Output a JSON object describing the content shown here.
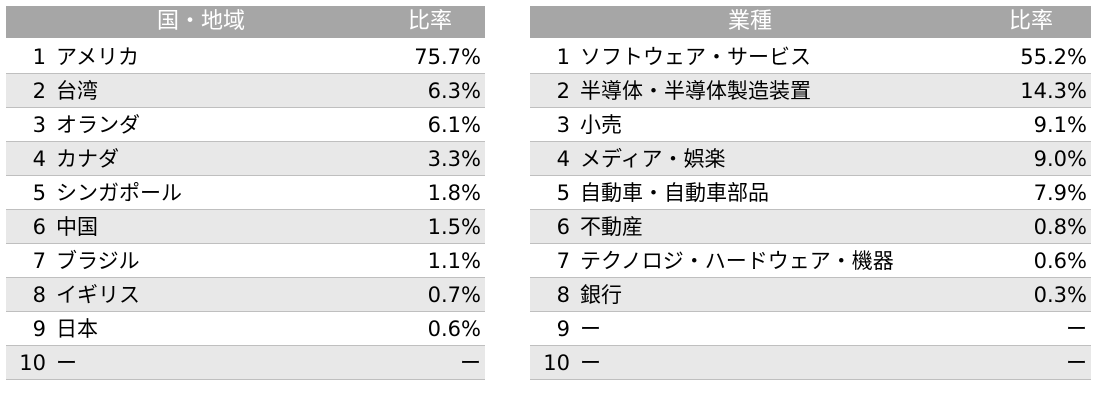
{
  "country_table": {
    "header_name": "国・地域",
    "header_rate": "比率",
    "rows": [
      {
        "num": "1",
        "name": "アメリカ",
        "rate": "75.7%"
      },
      {
        "num": "2",
        "name": "台湾",
        "rate": "6.3%"
      },
      {
        "num": "3",
        "name": "オランダ",
        "rate": "6.1%"
      },
      {
        "num": "4",
        "name": "カナダ",
        "rate": "3.3%"
      },
      {
        "num": "5",
        "name": "シンガポール",
        "rate": "1.8%"
      },
      {
        "num": "6",
        "name": "中国",
        "rate": "1.5%"
      },
      {
        "num": "7",
        "name": "ブラジル",
        "rate": "1.1%"
      },
      {
        "num": "8",
        "name": "イギリス",
        "rate": "0.7%"
      },
      {
        "num": "9",
        "name": "日本",
        "rate": "0.6%"
      },
      {
        "num": "10",
        "name": "ー",
        "rate": "ー"
      }
    ]
  },
  "industry_table": {
    "header_name": "業種",
    "header_rate": "比率",
    "rows": [
      {
        "num": "1",
        "name": "ソフトウェア・サービス",
        "rate": "55.2%"
      },
      {
        "num": "2",
        "name": "半導体・半導体製造装置",
        "rate": "14.3%"
      },
      {
        "num": "3",
        "name": "小売",
        "rate": "9.1%"
      },
      {
        "num": "4",
        "name": "メディア・娯楽",
        "rate": "9.0%"
      },
      {
        "num": "5",
        "name": "自動車・自動車部品",
        "rate": "7.9%"
      },
      {
        "num": "6",
        "name": "不動産",
        "rate": "0.8%"
      },
      {
        "num": "7",
        "name": "テクノロジ・ハードウェア・機器",
        "rate": "0.6%"
      },
      {
        "num": "8",
        "name": "銀行",
        "rate": "0.3%"
      },
      {
        "num": "9",
        "name": "ー",
        "rate": "ー"
      },
      {
        "num": "10",
        "name": "ー",
        "rate": "ー"
      }
    ]
  },
  "colors": {
    "header_bg": "#a6a6a6",
    "header_text": "#ffffff",
    "shade_row": "#e8e8e8",
    "divider": "#bfbfbf"
  }
}
